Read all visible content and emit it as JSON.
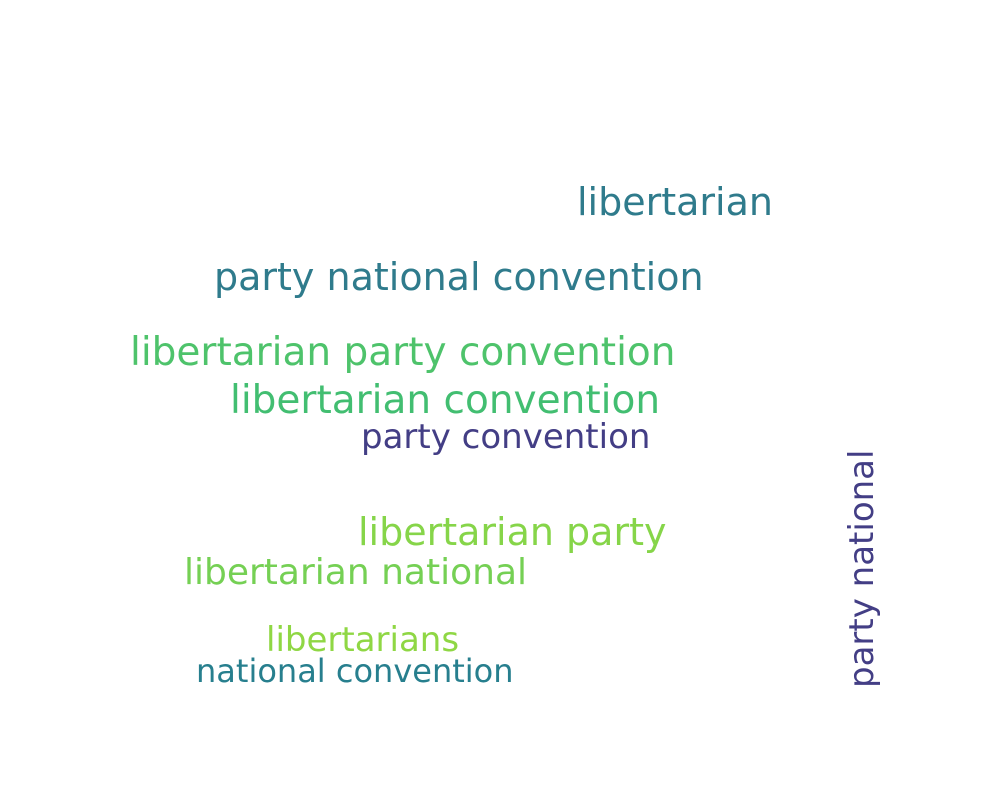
{
  "word_cloud": {
    "background": "#ffffff",
    "words": [
      {
        "text": "libertarian",
        "color": "#2f7b8c",
        "orientation": "horizontal"
      },
      {
        "text": "party national convention",
        "color": "#2f7b8c",
        "orientation": "horizontal"
      },
      {
        "text": "libertarian party convention",
        "color": "#4ec36b",
        "orientation": "horizontal"
      },
      {
        "text": "libertarian convention",
        "color": "#42be71",
        "orientation": "horizontal"
      },
      {
        "text": "party convention",
        "color": "#433e85",
        "orientation": "horizontal"
      },
      {
        "text": "libertarian party",
        "color": "#86d549",
        "orientation": "horizontal"
      },
      {
        "text": "libertarian national",
        "color": "#75d054",
        "orientation": "horizontal"
      },
      {
        "text": "libertarians",
        "color": "#8fd744",
        "orientation": "horizontal"
      },
      {
        "text": "national convention",
        "color": "#277f8e",
        "orientation": "horizontal"
      },
      {
        "text": "party national",
        "color": "#433e85",
        "orientation": "vertical"
      }
    ]
  }
}
